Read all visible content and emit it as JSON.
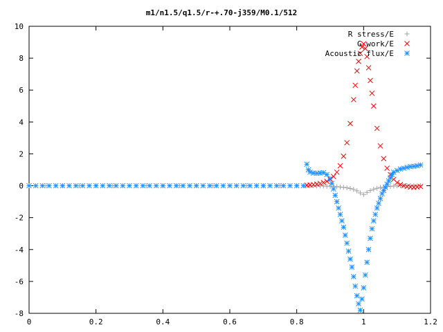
{
  "chart_data": {
    "type": "scatter",
    "title": "m1/n1.5/q1.5/r-+.70-j359/M0.1/512",
    "xlabel": "",
    "ylabel": "",
    "xlim": [
      0,
      1.2
    ],
    "ylim": [
      -8,
      10
    ],
    "x_ticks": [
      "0",
      "0.2",
      "0.4",
      "0.6",
      "0.8",
      "1",
      "1.2"
    ],
    "y_ticks": [
      "-8",
      "-6",
      "-4",
      "-2",
      "0",
      "2",
      "4",
      "6",
      "8",
      "10"
    ],
    "grid": false,
    "legend_position": "top-right",
    "series": [
      {
        "name": "R stress/E",
        "marker": "+",
        "color": "#a0a0a0",
        "points": [
          [
            0.0,
            0
          ],
          [
            0.05,
            0
          ],
          [
            0.1,
            0
          ],
          [
            0.15,
            0
          ],
          [
            0.2,
            0
          ],
          [
            0.25,
            0
          ],
          [
            0.3,
            0
          ],
          [
            0.35,
            0
          ],
          [
            0.4,
            0
          ],
          [
            0.45,
            0
          ],
          [
            0.5,
            0
          ],
          [
            0.55,
            0
          ],
          [
            0.6,
            0
          ],
          [
            0.65,
            0
          ],
          [
            0.7,
            0
          ],
          [
            0.75,
            0
          ],
          [
            0.8,
            0
          ],
          [
            0.83,
            0
          ],
          [
            0.84,
            0.0
          ],
          [
            0.85,
            0.0
          ],
          [
            0.86,
            -0.01
          ],
          [
            0.87,
            -0.01
          ],
          [
            0.88,
            -0.02
          ],
          [
            0.89,
            -0.03
          ],
          [
            0.9,
            -0.03
          ],
          [
            0.91,
            -0.05
          ],
          [
            0.92,
            -0.06
          ],
          [
            0.93,
            -0.08
          ],
          [
            0.94,
            -0.1
          ],
          [
            0.95,
            -0.13
          ],
          [
            0.96,
            -0.17
          ],
          [
            0.97,
            -0.23
          ],
          [
            0.98,
            -0.32
          ],
          [
            0.99,
            -0.45
          ],
          [
            1.0,
            -0.55
          ],
          [
            1.01,
            -0.42
          ],
          [
            1.02,
            -0.3
          ],
          [
            1.03,
            -0.22
          ],
          [
            1.04,
            -0.16
          ],
          [
            1.05,
            -0.11
          ],
          [
            1.06,
            -0.08
          ],
          [
            1.07,
            -0.05
          ],
          [
            1.08,
            -0.04
          ],
          [
            1.09,
            -0.02
          ],
          [
            1.1,
            -0.01
          ],
          [
            1.11,
            0.0
          ],
          [
            1.12,
            0.0
          ],
          [
            1.13,
            0.0
          ],
          [
            1.14,
            0.0
          ],
          [
            1.15,
            0.0
          ],
          [
            1.16,
            0.0
          ],
          [
            1.17,
            0.0
          ]
        ]
      },
      {
        "name": "G work/E",
        "marker": "x",
        "color": "#ff0000",
        "points": [
          [
            0.83,
            0.03
          ],
          [
            0.84,
            0.05
          ],
          [
            0.85,
            0.07
          ],
          [
            0.86,
            0.1
          ],
          [
            0.87,
            0.14
          ],
          [
            0.88,
            0.2
          ],
          [
            0.89,
            0.28
          ],
          [
            0.9,
            0.4
          ],
          [
            0.91,
            0.58
          ],
          [
            0.92,
            0.85
          ],
          [
            0.93,
            1.25
          ],
          [
            0.94,
            1.85
          ],
          [
            0.95,
            2.7
          ],
          [
            0.96,
            3.9
          ],
          [
            0.97,
            5.4
          ],
          [
            0.975,
            6.3
          ],
          [
            0.98,
            7.2
          ],
          [
            0.985,
            7.8
          ],
          [
            0.99,
            8.3
          ],
          [
            0.995,
            8.7
          ],
          [
            1.0,
            8.9
          ],
          [
            1.005,
            8.6
          ],
          [
            1.01,
            8.1
          ],
          [
            1.015,
            7.4
          ],
          [
            1.02,
            6.6
          ],
          [
            1.025,
            5.8
          ],
          [
            1.03,
            5.0
          ],
          [
            1.04,
            3.6
          ],
          [
            1.05,
            2.5
          ],
          [
            1.06,
            1.7
          ],
          [
            1.07,
            1.1
          ],
          [
            1.08,
            0.7
          ],
          [
            1.09,
            0.4
          ],
          [
            1.1,
            0.2
          ],
          [
            1.11,
            0.08
          ],
          [
            1.12,
            0.0
          ],
          [
            1.13,
            -0.05
          ],
          [
            1.14,
            -0.08
          ],
          [
            1.15,
            -0.1
          ],
          [
            1.16,
            -0.08
          ],
          [
            1.17,
            -0.05
          ]
        ]
      },
      {
        "name": "Acoustic flux/E",
        "marker": "*",
        "color": "#1e90ff",
        "points": [
          [
            0.0,
            0
          ],
          [
            0.02,
            0
          ],
          [
            0.04,
            0
          ],
          [
            0.06,
            0
          ],
          [
            0.08,
            0
          ],
          [
            0.1,
            0
          ],
          [
            0.12,
            0
          ],
          [
            0.14,
            0
          ],
          [
            0.16,
            0
          ],
          [
            0.18,
            0
          ],
          [
            0.2,
            0
          ],
          [
            0.22,
            0
          ],
          [
            0.24,
            0
          ],
          [
            0.26,
            0
          ],
          [
            0.28,
            0
          ],
          [
            0.3,
            0
          ],
          [
            0.32,
            0
          ],
          [
            0.34,
            0
          ],
          [
            0.36,
            0
          ],
          [
            0.38,
            0
          ],
          [
            0.4,
            0
          ],
          [
            0.42,
            0
          ],
          [
            0.44,
            0
          ],
          [
            0.46,
            0
          ],
          [
            0.48,
            0
          ],
          [
            0.5,
            0
          ],
          [
            0.52,
            0
          ],
          [
            0.54,
            0
          ],
          [
            0.56,
            0
          ],
          [
            0.58,
            0
          ],
          [
            0.6,
            0
          ],
          [
            0.62,
            0
          ],
          [
            0.64,
            0
          ],
          [
            0.66,
            0
          ],
          [
            0.68,
            0
          ],
          [
            0.7,
            0
          ],
          [
            0.72,
            0
          ],
          [
            0.74,
            0
          ],
          [
            0.76,
            0
          ],
          [
            0.78,
            0
          ],
          [
            0.8,
            0
          ],
          [
            0.82,
            0
          ],
          [
            0.83,
            1.35
          ],
          [
            0.835,
            1.0
          ],
          [
            0.84,
            0.85
          ],
          [
            0.85,
            0.8
          ],
          [
            0.86,
            0.78
          ],
          [
            0.87,
            0.8
          ],
          [
            0.88,
            0.82
          ],
          [
            0.89,
            0.7
          ],
          [
            0.9,
            0.45
          ],
          [
            0.905,
            0.15
          ],
          [
            0.91,
            -0.2
          ],
          [
            0.915,
            -0.6
          ],
          [
            0.92,
            -1.0
          ],
          [
            0.925,
            -1.4
          ],
          [
            0.93,
            -1.8
          ],
          [
            0.935,
            -2.2
          ],
          [
            0.94,
            -2.6
          ],
          [
            0.945,
            -3.1
          ],
          [
            0.95,
            -3.6
          ],
          [
            0.955,
            -4.1
          ],
          [
            0.96,
            -4.6
          ],
          [
            0.965,
            -5.1
          ],
          [
            0.97,
            -5.7
          ],
          [
            0.975,
            -6.3
          ],
          [
            0.98,
            -6.9
          ],
          [
            0.985,
            -7.4
          ],
          [
            0.99,
            -7.8
          ],
          [
            0.995,
            -7.1
          ],
          [
            1.0,
            -6.4
          ],
          [
            1.005,
            -5.6
          ],
          [
            1.01,
            -4.8
          ],
          [
            1.015,
            -4.0
          ],
          [
            1.02,
            -3.3
          ],
          [
            1.025,
            -2.7
          ],
          [
            1.03,
            -2.2
          ],
          [
            1.035,
            -1.8
          ],
          [
            1.04,
            -1.4
          ],
          [
            1.045,
            -1.1
          ],
          [
            1.05,
            -0.8
          ],
          [
            1.055,
            -0.5
          ],
          [
            1.06,
            -0.3
          ],
          [
            1.065,
            -0.1
          ],
          [
            1.07,
            0.1
          ],
          [
            1.075,
            0.3
          ],
          [
            1.08,
            0.5
          ],
          [
            1.085,
            0.7
          ],
          [
            1.09,
            0.85
          ],
          [
            1.1,
            0.95
          ],
          [
            1.11,
            1.05
          ],
          [
            1.12,
            1.1
          ],
          [
            1.13,
            1.15
          ],
          [
            1.14,
            1.2
          ],
          [
            1.15,
            1.22
          ],
          [
            1.16,
            1.25
          ],
          [
            1.17,
            1.3
          ]
        ]
      }
    ]
  }
}
